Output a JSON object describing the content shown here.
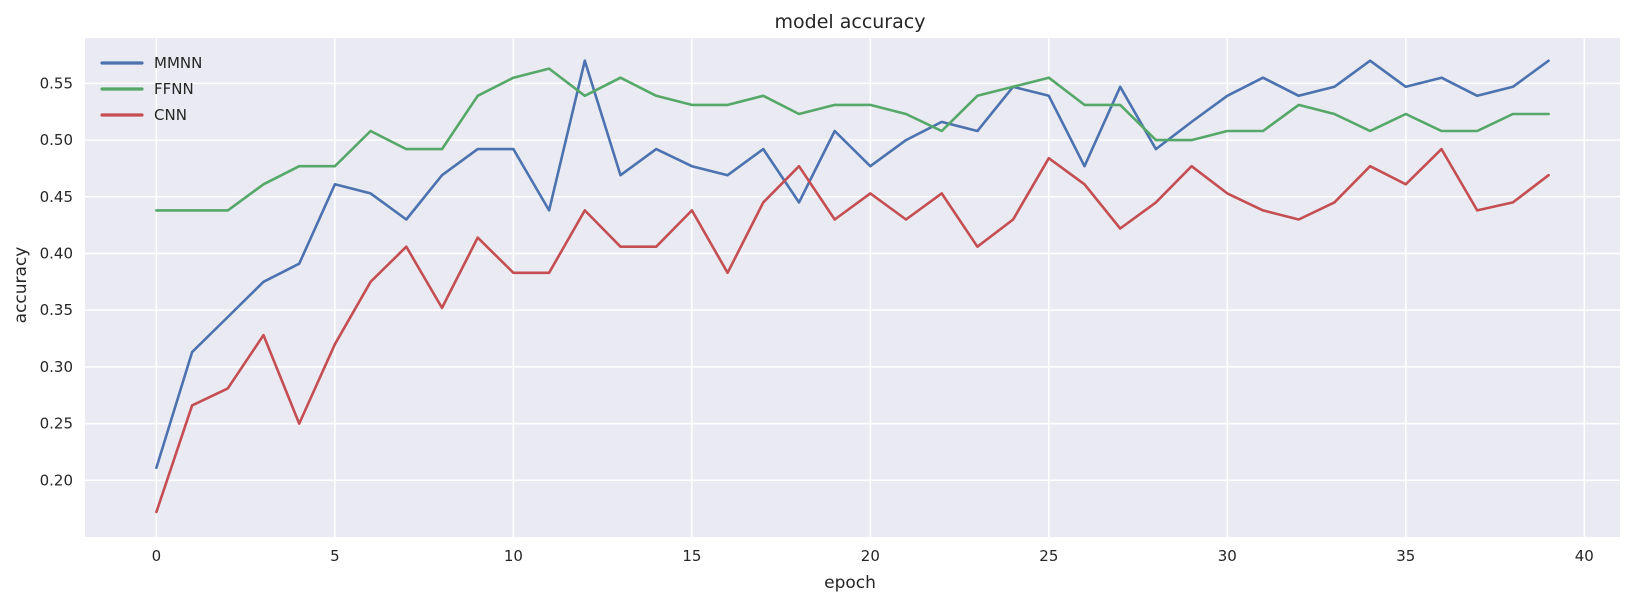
{
  "chart_data": {
    "type": "line",
    "title": "model accuracy",
    "xlabel": "epoch",
    "ylabel": "accuracy",
    "xlim": [
      -2,
      41
    ],
    "ylim": [
      0.15,
      0.59
    ],
    "xticks": [
      0,
      5,
      10,
      15,
      20,
      25,
      30,
      35,
      40
    ],
    "yticks": [
      0.2,
      0.25,
      0.3,
      0.35,
      0.4,
      0.45,
      0.5,
      0.55
    ],
    "grid": true,
    "legend_position": "upper-left",
    "background": "#EAEAF2",
    "x": [
      0,
      1,
      2,
      3,
      4,
      5,
      6,
      7,
      8,
      9,
      10,
      11,
      12,
      13,
      14,
      15,
      16,
      17,
      18,
      19,
      20,
      21,
      22,
      23,
      24,
      25,
      26,
      27,
      28,
      29,
      30,
      31,
      32,
      33,
      34,
      35,
      36,
      37,
      38,
      39
    ],
    "series": [
      {
        "name": "MMNN",
        "color": "#4C72B0",
        "values": [
          0.211,
          0.313,
          0.344,
          0.375,
          0.391,
          0.461,
          0.453,
          0.43,
          0.469,
          0.492,
          0.492,
          0.438,
          0.57,
          0.469,
          0.492,
          0.477,
          0.469,
          0.492,
          0.445,
          0.508,
          0.477,
          0.5,
          0.516,
          0.508,
          0.547,
          0.539,
          0.477,
          0.547,
          0.492,
          0.516,
          0.539,
          0.555,
          0.539,
          0.547,
          0.57,
          0.547,
          0.555,
          0.539,
          0.547,
          0.57
        ]
      },
      {
        "name": "FFNN",
        "color": "#55A868",
        "values": [
          0.438,
          0.438,
          0.438,
          0.461,
          0.477,
          0.477,
          0.508,
          0.492,
          0.492,
          0.539,
          0.555,
          0.563,
          0.539,
          0.555,
          0.539,
          0.531,
          0.531,
          0.539,
          0.523,
          0.531,
          0.531,
          0.523,
          0.508,
          0.539,
          0.547,
          0.555,
          0.531,
          0.531,
          0.5,
          0.5,
          0.508,
          0.508,
          0.531,
          0.523,
          0.508,
          0.523,
          0.508,
          0.508,
          0.523,
          0.523
        ]
      },
      {
        "name": "CNN",
        "color": "#C44E52",
        "values": [
          0.172,
          0.266,
          0.281,
          0.328,
          0.25,
          0.32,
          0.375,
          0.406,
          0.352,
          0.414,
          0.383,
          0.383,
          0.438,
          0.406,
          0.406,
          0.438,
          0.383,
          0.445,
          0.477,
          0.43,
          0.453,
          0.43,
          0.453,
          0.406,
          0.43,
          0.484,
          0.461,
          0.422,
          0.445,
          0.477,
          0.453,
          0.438,
          0.43,
          0.445,
          0.477,
          0.461,
          0.492,
          0.438,
          0.445,
          0.469
        ]
      }
    ]
  }
}
